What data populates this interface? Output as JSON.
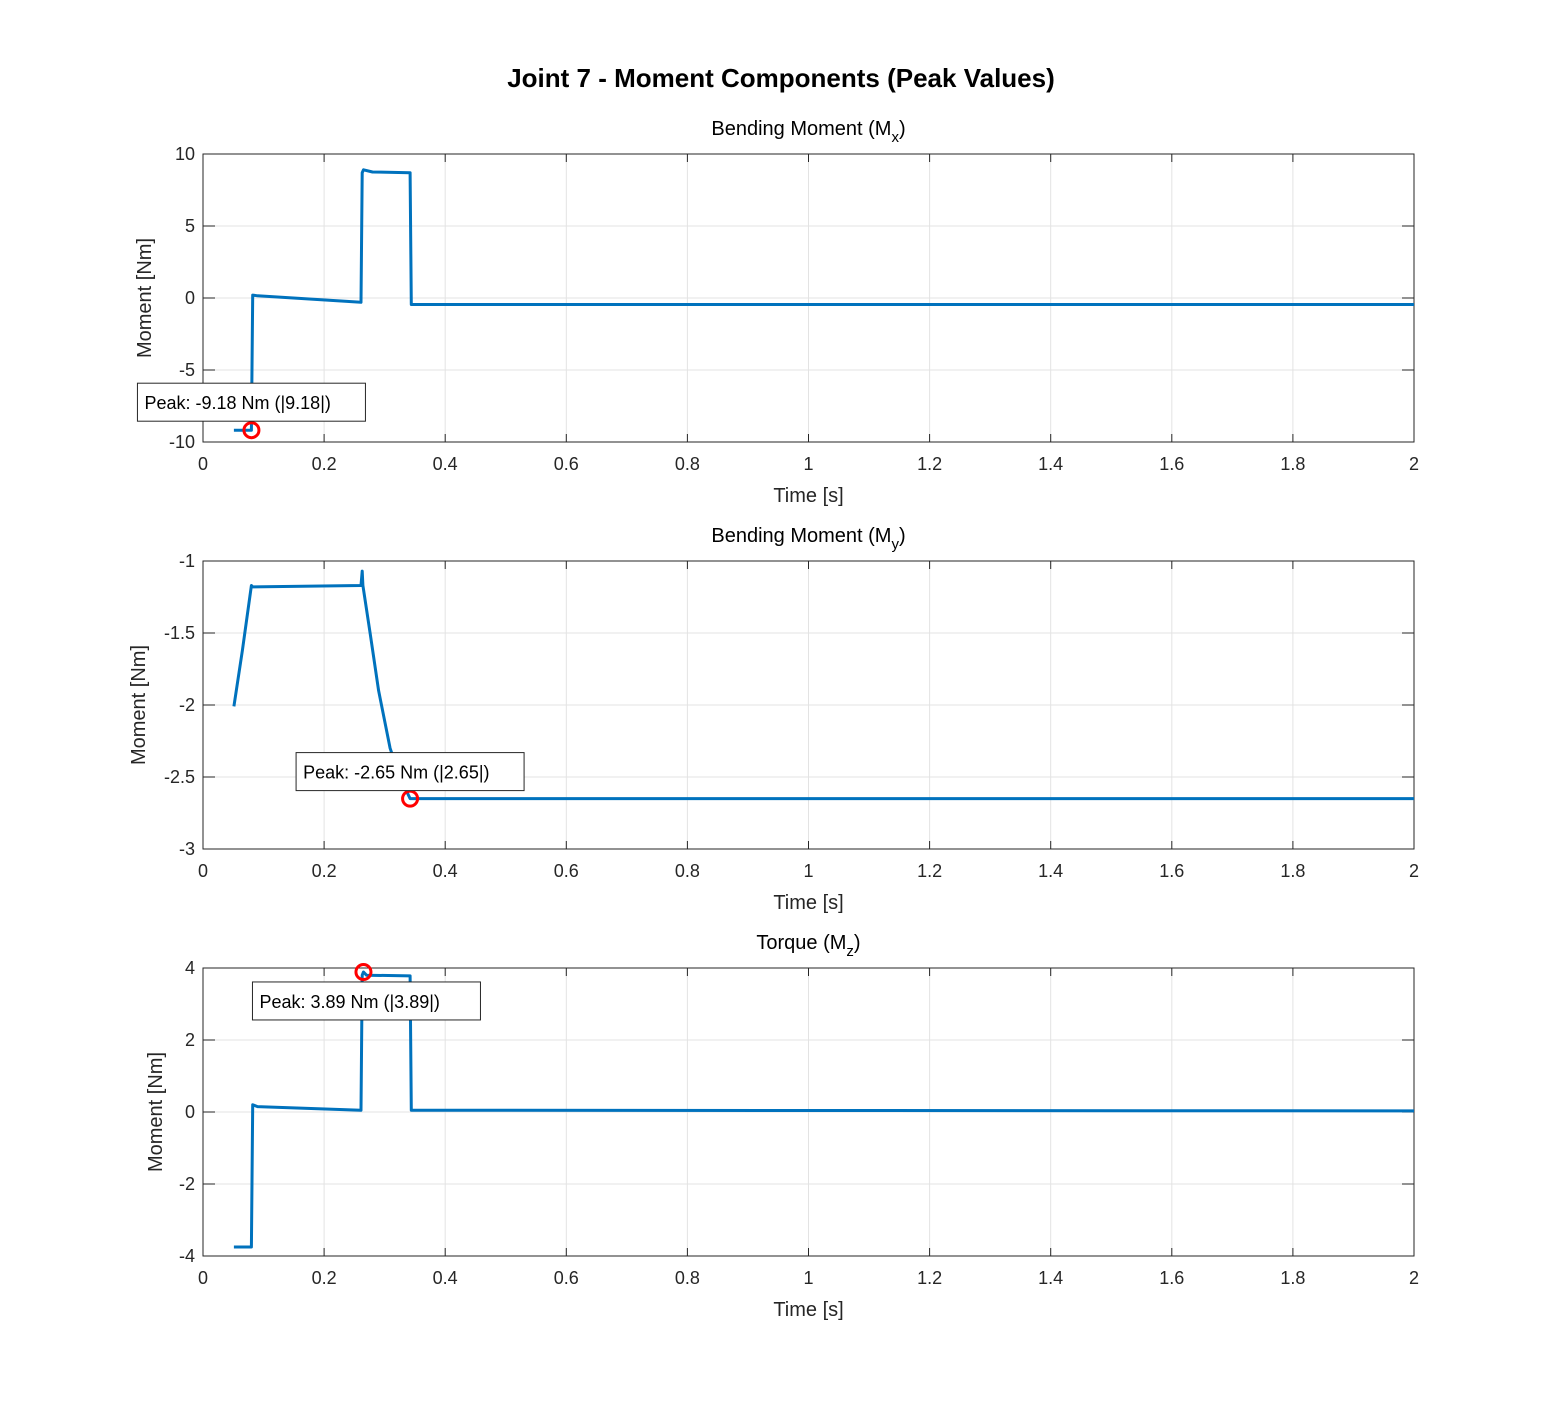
{
  "figure_title": "Joint 7 - Moment Components (Peak Values)",
  "colors": {
    "line": "#0072BD",
    "peak_marker": "#FF0000",
    "grid": "#e3e3e3",
    "axes": "#262626"
  },
  "chart_data": [
    {
      "type": "line",
      "title_prefix": "Bending Moment (M",
      "title_sub": "x",
      "title_suffix": ")",
      "xlabel": "Time [s]",
      "ylabel": "Moment [Nm]",
      "xlim": [
        0,
        2
      ],
      "ylim": [
        -10,
        10
      ],
      "xticks": [
        0,
        0.2,
        0.4,
        0.6,
        0.8,
        1,
        1.2,
        1.4,
        1.6,
        1.8,
        2
      ],
      "xtick_labels": [
        "0",
        "0.2",
        "0.4",
        "0.6",
        "0.8",
        "1",
        "1.2",
        "1.4",
        "1.6",
        "1.8",
        "2"
      ],
      "yticks": [
        -10,
        -5,
        0,
        5,
        10
      ],
      "ytick_labels": [
        "-10",
        "-5",
        "0",
        "5",
        "10"
      ],
      "grid": true,
      "x": [
        0.051,
        0.08,
        0.082,
        0.09,
        0.261,
        0.263,
        0.265,
        0.28,
        0.342,
        0.344,
        2.0
      ],
      "y": [
        -9.18,
        -9.18,
        0.2,
        0.15,
        -0.3,
        8.7,
        8.9,
        8.75,
        8.7,
        -0.45,
        -0.45
      ],
      "peak": {
        "x": 0.08,
        "y": -9.18,
        "label": "Peak: -9.18 Nm (|9.18|)"
      }
    },
    {
      "type": "line",
      "title_prefix": "Bending Moment (M",
      "title_sub": "y",
      "title_suffix": ")",
      "xlabel": "Time [s]",
      "ylabel": "Moment [Nm]",
      "xlim": [
        0,
        2
      ],
      "ylim": [
        -3,
        -1
      ],
      "xticks": [
        0,
        0.2,
        0.4,
        0.6,
        0.8,
        1,
        1.2,
        1.4,
        1.6,
        1.8,
        2
      ],
      "xtick_labels": [
        "0",
        "0.2",
        "0.4",
        "0.6",
        "0.8",
        "1",
        "1.2",
        "1.4",
        "1.6",
        "1.8",
        "2"
      ],
      "yticks": [
        -3,
        -2.5,
        -2,
        -1.5,
        -1
      ],
      "ytick_labels": [
        "-3",
        "-2.5",
        "-2",
        "-1.5",
        "-1"
      ],
      "grid": true,
      "x": [
        0.051,
        0.065,
        0.08,
        0.082,
        0.261,
        0.263,
        0.264,
        0.276,
        0.29,
        0.309,
        0.325,
        0.342,
        2.0
      ],
      "y": [
        -2.01,
        -1.62,
        -1.17,
        -1.18,
        -1.17,
        -1.07,
        -1.17,
        -1.5,
        -1.9,
        -2.3,
        -2.5,
        -2.65,
        -2.65
      ],
      "peak": {
        "x": 0.342,
        "y": -2.65,
        "label": "Peak: -2.65 Nm (|2.65|)"
      }
    },
    {
      "type": "line",
      "title_prefix": "Torque (M",
      "title_sub": "z",
      "title_suffix": ")",
      "xlabel": "Time [s]",
      "ylabel": "Moment [Nm]",
      "xlim": [
        0,
        2
      ],
      "ylim": [
        -4,
        4
      ],
      "xticks": [
        0,
        0.2,
        0.4,
        0.6,
        0.8,
        1,
        1.2,
        1.4,
        1.6,
        1.8,
        2
      ],
      "xtick_labels": [
        "0",
        "0.2",
        "0.4",
        "0.6",
        "0.8",
        "1",
        "1.2",
        "1.4",
        "1.6",
        "1.8",
        "2"
      ],
      "yticks": [
        -4,
        -2,
        0,
        2,
        4
      ],
      "ytick_labels": [
        "-4",
        "-2",
        "0",
        "2",
        "4"
      ],
      "grid": true,
      "x": [
        0.051,
        0.08,
        0.082,
        0.09,
        0.261,
        0.263,
        0.265,
        0.27,
        0.342,
        0.344,
        2.0
      ],
      "y": [
        -3.75,
        -3.75,
        0.2,
        0.15,
        0.05,
        3.8,
        3.89,
        3.8,
        3.78,
        0.05,
        0.03
      ],
      "peak": {
        "x": 0.265,
        "y": 3.89,
        "label": "Peak: 3.89 Nm (|3.89|)"
      }
    }
  ]
}
